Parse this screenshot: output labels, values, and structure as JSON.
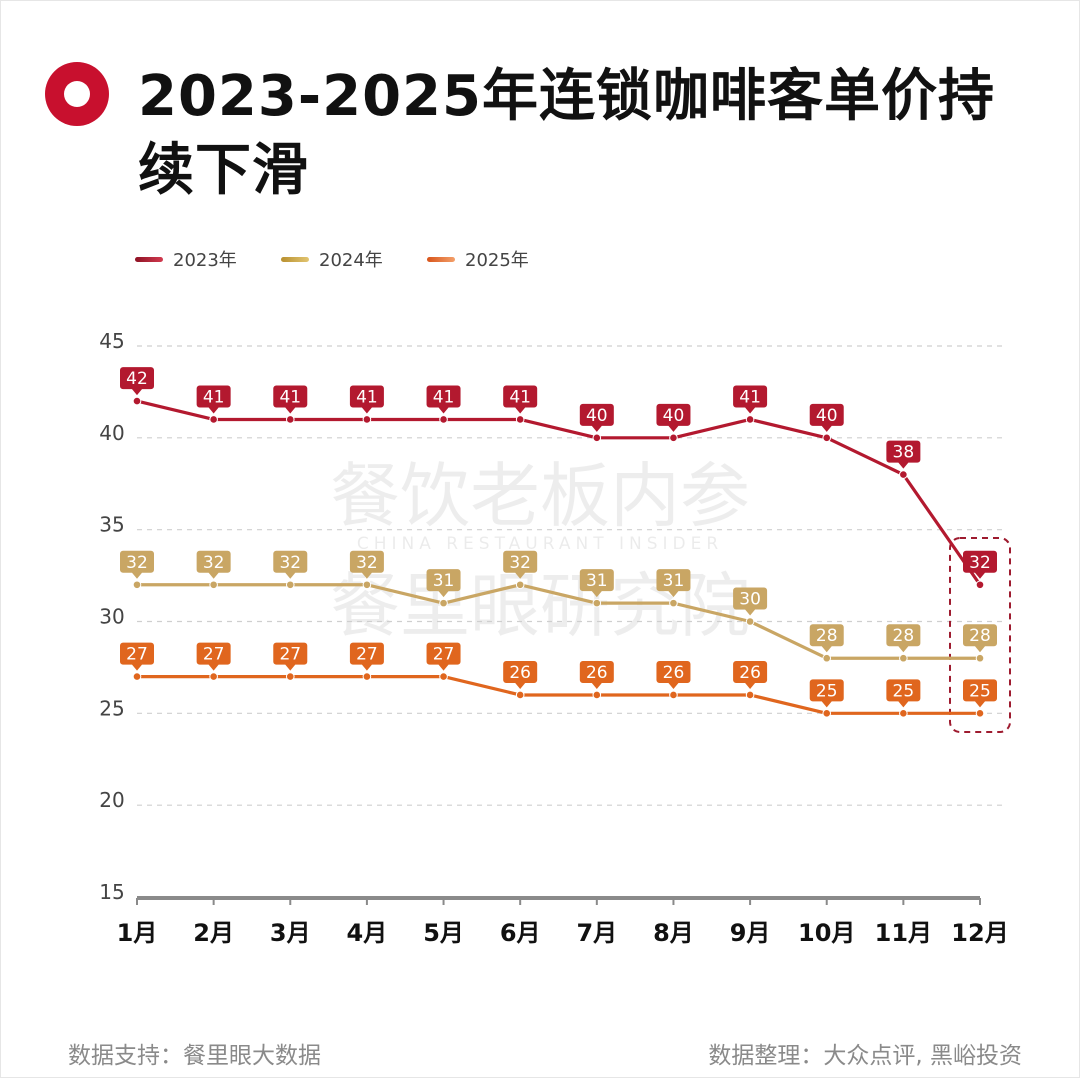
{
  "title": "2023-2025年连锁咖啡客单价持续下滑",
  "footer": {
    "left": "数据支持：餐里眼大数据",
    "right": "数据整理：大众点评, 黑峪投资"
  },
  "watermark": {
    "line1": "餐饮老板内参",
    "line2": "CHINA RESTAURANT INSIDER",
    "line3": "餐里眼研究院"
  },
  "chart_data": {
    "type": "line",
    "title": "2023-2025年连锁咖啡客单价持续下滑",
    "xlabel": "",
    "ylabel": "",
    "categories": [
      "1月",
      "2月",
      "3月",
      "4月",
      "5月",
      "6月",
      "7月",
      "8月",
      "9月",
      "10月",
      "11月",
      "12月"
    ],
    "yticks": [
      15,
      20,
      25,
      30,
      35,
      40,
      45
    ],
    "ylim": [
      15,
      45
    ],
    "grid": true,
    "legend_position": "top-left",
    "series": [
      {
        "name": "2023年",
        "color": "#b3192f",
        "values": [
          42,
          41,
          41,
          41,
          41,
          41,
          40,
          40,
          41,
          40,
          38,
          32
        ]
      },
      {
        "name": "2024年",
        "color": "#c9a664",
        "values": [
          32,
          32,
          32,
          32,
          31,
          32,
          31,
          31,
          30,
          28,
          28,
          28
        ]
      },
      {
        "name": "2025年",
        "color": "#e0661e",
        "values": [
          27,
          27,
          27,
          27,
          27,
          26,
          26,
          26,
          26,
          25,
          25,
          25
        ]
      }
    ],
    "highlight_category": "12月"
  }
}
